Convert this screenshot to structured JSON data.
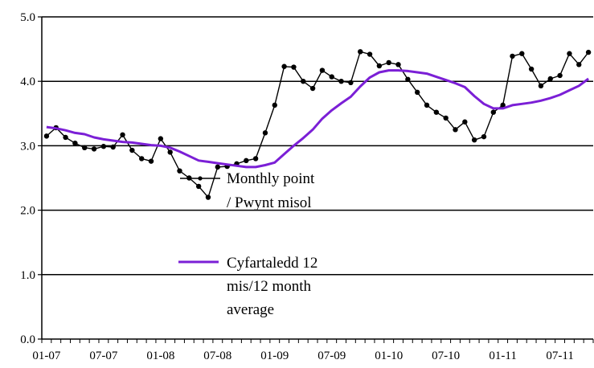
{
  "chart_data": {
    "type": "line",
    "x_start": "2007-01",
    "x_tick_labels": [
      "01-07",
      "07-07",
      "01-08",
      "07-08",
      "01-09",
      "07-09",
      "01-10",
      "07-10",
      "01-11",
      "07-11"
    ],
    "y_tick_labels": [
      "0.0",
      "1.0",
      "2.0",
      "3.0",
      "4.0",
      "5.0"
    ],
    "ylim": [
      0,
      5
    ],
    "grid": "horizontal",
    "legend_placement": "inside",
    "series": [
      {
        "name_lines": [
          "Monthly point",
          "/ Pwynt misol"
        ],
        "color": "#000000",
        "marker": "dot",
        "values": [
          3.15,
          3.28,
          3.13,
          3.04,
          2.97,
          2.95,
          2.99,
          2.98,
          3.17,
          2.93,
          2.8,
          2.76,
          3.11,
          2.9,
          2.61,
          2.5,
          2.37,
          2.2,
          2.67,
          2.68,
          2.72,
          2.77,
          2.8,
          3.2,
          3.63,
          4.23,
          4.22,
          4.0,
          3.89,
          4.17,
          4.07,
          4.0,
          3.98,
          4.46,
          4.42,
          4.24,
          4.29,
          4.26,
          4.03,
          3.83,
          3.63,
          3.52,
          3.43,
          3.25,
          3.37,
          3.09,
          3.14,
          3.52,
          3.63,
          4.39,
          4.43,
          4.19,
          3.93,
          4.04,
          4.09,
          4.43,
          4.26,
          4.45
        ]
      },
      {
        "name_lines": [
          "Cyfartaledd 12",
          "mis/12 month",
          "average"
        ],
        "color": "#7B1FD6",
        "marker": "none",
        "values": [
          3.29,
          3.27,
          3.24,
          3.2,
          3.18,
          3.13,
          3.1,
          3.08,
          3.06,
          3.05,
          3.03,
          3.01,
          3.0,
          2.97,
          2.91,
          2.84,
          2.77,
          2.75,
          2.73,
          2.71,
          2.69,
          2.67,
          2.67,
          2.7,
          2.74,
          2.87,
          3.0,
          3.12,
          3.25,
          3.42,
          3.55,
          3.66,
          3.76,
          3.92,
          4.06,
          4.14,
          4.17,
          4.17,
          4.16,
          4.14,
          4.12,
          4.07,
          4.02,
          3.97,
          3.91,
          3.77,
          3.65,
          3.58,
          3.58,
          3.63,
          3.65,
          3.67,
          3.7,
          3.74,
          3.79,
          3.86,
          3.93,
          4.04
        ]
      }
    ]
  }
}
